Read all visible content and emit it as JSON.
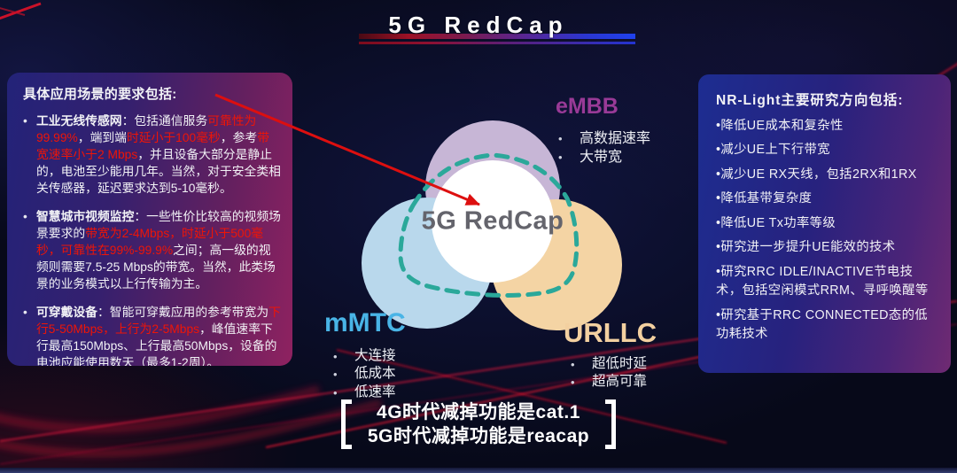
{
  "title": {
    "text": "5G RedCap"
  },
  "colors": {
    "red_text": "#ee1507",
    "embb": "#993a97",
    "mmtc": "#49b4e6",
    "urllc": "#f3d0a0",
    "dash": "#2ba89a",
    "arrow": "#dd0f0f",
    "circle_embb": "#c7b6d6",
    "circle_mmtc": "#b9d8ec",
    "circle_urllc": "#f4d4a4",
    "circle_center": "#ffffff"
  },
  "left_panel": {
    "heading": "具体应用场景的要求包括:",
    "bullet_char": "•",
    "paragraphs": [
      {
        "segments": [
          {
            "t": "工业无线传感网",
            "b": true
          },
          {
            "t": "：包括通信服务"
          },
          {
            "t": "可靠性为99.99%",
            "r": true
          },
          {
            "t": "，端到端"
          },
          {
            "t": "时延小于100毫秒",
            "r": true
          },
          {
            "t": "，参考"
          },
          {
            "t": "带宽速率小于2 Mbps",
            "r": true
          },
          {
            "t": "，并且设备大部分是静止的，电池至少能用几年。当然，对于安全类相关传感器，延迟要求达到5-10毫秒。"
          }
        ]
      },
      {
        "segments": [
          {
            "t": "智慧城市视频监控",
            "b": true
          },
          {
            "t": "：一些性价比较高的视频场景要求的"
          },
          {
            "t": "带宽为2-4Mbps，时延小于500毫秒，可靠性在99%-99.9%",
            "r": true
          },
          {
            "t": "之间；高一级的视频则需要7.5-25 Mbps的带宽。当然，此类场景的业务模式以上行传输为主。"
          }
        ]
      },
      {
        "segments": [
          {
            "t": "可穿戴设备",
            "b": true
          },
          {
            "t": "：智能可穿戴应用的参考带宽为"
          },
          {
            "t": "下行5-50Mbps，上行为2-5Mbps",
            "r": true
          },
          {
            "t": "，峰值速率下行最高150Mbps、上行最高50Mbps，设备的电池应能使用数天（最多1-2周）。"
          }
        ]
      }
    ]
  },
  "right_panel": {
    "heading": "NR-Light主要研究方向包括:",
    "bullet_char": "•",
    "items": [
      "降低UE成本和复杂性",
      "减少UE上下行带宽",
      "减少UE RX天线，包括2RX和1RX",
      "降低基带复杂度",
      "降低UE Tx功率等级",
      "研究进一步提升UE能效的技术",
      "研究RRC IDLE/INACTIVE节电技术，包括空闲模式RRM、寻呼唤醒等",
      "研究基于RRC CONNECTED态的低功耗技术"
    ]
  },
  "diagram": {
    "center_label": "5G RedCap",
    "bullet_char": "•",
    "groups": [
      {
        "name": "eMBB",
        "bullets": [
          "高数据速率",
          "大带宽"
        ]
      },
      {
        "name": "mMTC",
        "bullets": [
          "大连接",
          "低成本",
          "低速率"
        ]
      },
      {
        "name": "URLLC",
        "bullets": [
          "超低时延",
          "超高可靠"
        ]
      }
    ]
  },
  "footer": {
    "lines": [
      "4G时代减掉功能是cat.1",
      "5G时代减掉功能是reacap"
    ]
  }
}
